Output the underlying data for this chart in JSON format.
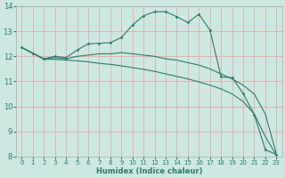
{
  "xlabel": "Humidex (Indice chaleur)",
  "bg_color": "#cce8e0",
  "grid_color": "#e8a0a0",
  "line_color": "#2d7a6e",
  "spine_color": "#aaaaaa",
  "xlim": [
    -0.5,
    23.5
  ],
  "ylim": [
    8,
    14
  ],
  "xticks": [
    0,
    1,
    2,
    3,
    4,
    5,
    6,
    7,
    8,
    9,
    10,
    11,
    12,
    13,
    14,
    15,
    16,
    17,
    18,
    19,
    20,
    21,
    22,
    23
  ],
  "yticks": [
    8,
    9,
    10,
    11,
    12,
    13,
    14
  ],
  "line1_x": [
    0,
    1,
    2,
    3,
    4,
    5,
    6,
    7,
    8,
    9,
    10,
    11,
    12,
    13,
    14,
    15,
    16,
    17,
    18,
    19,
    20,
    21,
    22,
    23
  ],
  "line1_y": [
    12.35,
    12.12,
    11.9,
    12.0,
    11.95,
    12.25,
    12.5,
    12.52,
    12.55,
    12.75,
    13.25,
    13.62,
    13.78,
    13.78,
    13.58,
    13.35,
    13.68,
    13.05,
    11.18,
    11.15,
    10.52,
    9.68,
    8.28,
    8.08
  ],
  "line2_x": [
    0,
    1,
    2,
    3,
    4,
    5,
    6,
    7,
    8,
    9,
    10,
    11,
    12,
    13,
    14,
    15,
    16,
    17,
    18,
    19,
    20,
    21,
    22,
    23
  ],
  "line2_y": [
    12.35,
    12.12,
    11.9,
    11.95,
    11.9,
    12.0,
    12.05,
    12.1,
    12.1,
    12.15,
    12.1,
    12.05,
    12.0,
    11.9,
    11.85,
    11.75,
    11.65,
    11.5,
    11.3,
    11.1,
    10.85,
    10.5,
    9.7,
    8.1
  ],
  "line3_x": [
    0,
    1,
    2,
    3,
    4,
    5,
    6,
    7,
    8,
    9,
    10,
    11,
    12,
    13,
    14,
    15,
    16,
    17,
    18,
    19,
    20,
    21,
    22,
    23
  ],
  "line3_y": [
    12.35,
    12.12,
    11.88,
    11.88,
    11.85,
    11.82,
    11.78,
    11.72,
    11.68,
    11.62,
    11.55,
    11.48,
    11.4,
    11.3,
    11.2,
    11.1,
    10.98,
    10.85,
    10.7,
    10.5,
    10.2,
    9.7,
    8.8,
    8.05
  ]
}
